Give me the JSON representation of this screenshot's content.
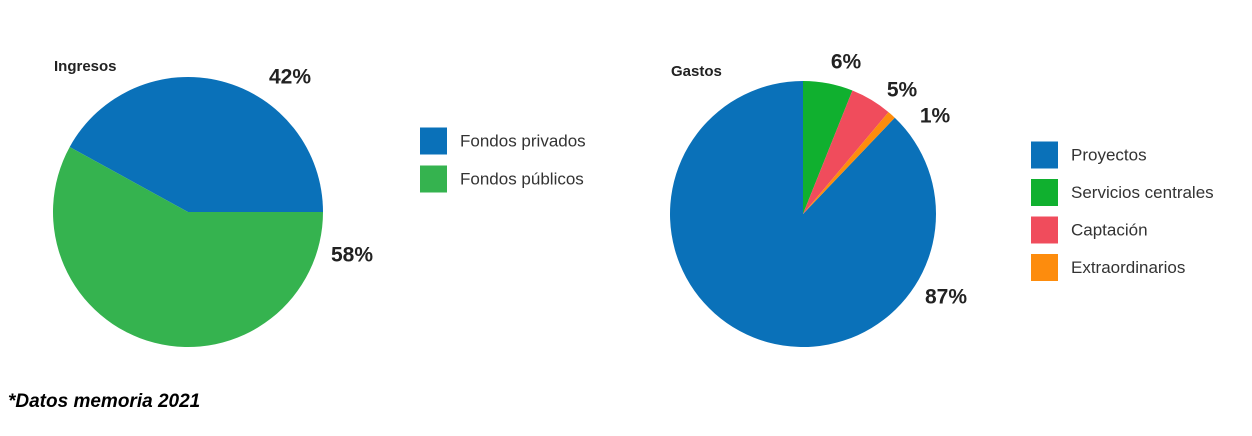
{
  "chart_data": [
    {
      "type": "pie",
      "title": "Ingresos",
      "categories": [
        "Fondos privados",
        "Fondos públicos"
      ],
      "values": [
        42,
        58
      ],
      "value_labels": [
        "42%",
        "58%"
      ],
      "colors": [
        "#0a71b9",
        "#35b34f"
      ],
      "legend": "right"
    },
    {
      "type": "pie",
      "title": "Gastos",
      "categories": [
        "Proyectos",
        "Servicios centrales",
        "Captación",
        "Extraordinarios"
      ],
      "values": [
        87,
        6,
        5,
        1
      ],
      "value_labels": [
        "87%",
        "6%",
        "5%",
        "1%"
      ],
      "colors": [
        "#0a71b9",
        "#10b02f",
        "#f04c5c",
        "#fd8c0d"
      ],
      "legend": "right"
    }
  ],
  "footnote": "*Datos memoria 2021"
}
